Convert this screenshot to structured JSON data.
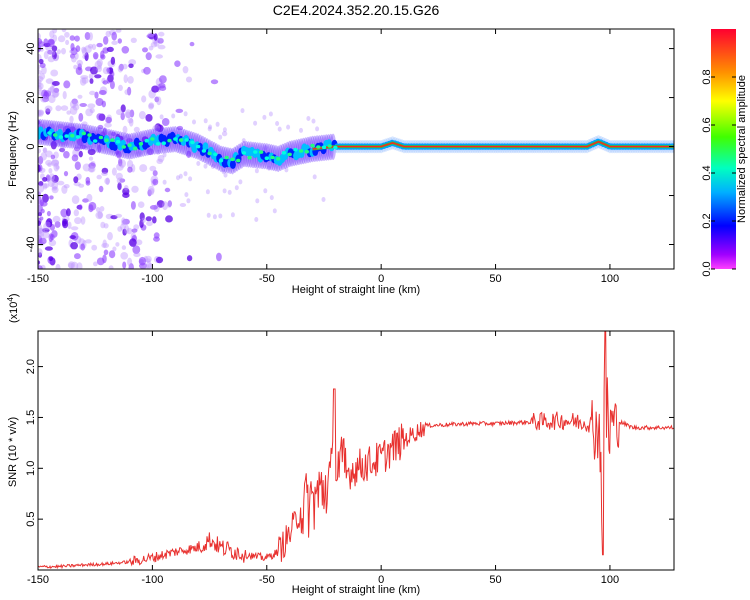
{
  "title": "C2E4.2024.352.20.15.G26",
  "chart_data": [
    {
      "type": "heatmap",
      "xlabel": "Height of straight line (km)",
      "ylabel": "Frequency (Hz)",
      "xlim": [
        -150,
        128
      ],
      "ylim": [
        -50,
        48
      ],
      "xticks": [
        -150,
        -100,
        -50,
        0,
        50,
        100
      ],
      "yticks": [
        -40,
        -20,
        0,
        20,
        40
      ],
      "colorbar": {
        "label": "Normalized spectral amplitude",
        "range": [
          0,
          1
        ],
        "ticks": [
          0.0,
          0.2,
          0.4,
          0.6,
          0.8
        ],
        "tick_labels": [
          "0.0",
          "0.2",
          "0.4",
          "0.6",
          "0.8"
        ],
        "colormap": [
          "#ff00ff",
          "#8000ff",
          "#0000ff",
          "#00ffff",
          "#00ff00",
          "#ffff00",
          "#ff8000",
          "#ff0000"
        ]
      },
      "ridge_center_hz": {
        "x": [
          -150,
          -140,
          -130,
          -120,
          -110,
          -100,
          -90,
          -80,
          -70,
          -65,
          -60,
          -50,
          -45,
          -40,
          -30,
          -20,
          -10,
          0,
          5,
          10,
          20,
          40,
          60,
          80,
          90,
          95,
          100,
          128
        ],
        "y": [
          6,
          5,
          4,
          2,
          0,
          2,
          3,
          0,
          -5,
          -6,
          -3,
          -4,
          -5,
          -3,
          -1,
          0,
          0,
          0,
          1.5,
          0,
          0,
          0,
          0,
          0,
          0,
          2,
          0,
          0
        ]
      }
    },
    {
      "type": "line",
      "xlabel": "Height of straight line (km)",
      "ylabel": "SNR (10 * v/v)",
      "y_multiplier_label": "(x10",
      "y_multiplier_exp": "4",
      "xlim": [
        -150,
        128
      ],
      "ylim": [
        0,
        23500
      ],
      "xticks": [
        -150,
        -100,
        -50,
        0,
        50,
        100
      ],
      "yticks": [
        5000,
        10000,
        15000,
        20000
      ],
      "ytick_labels": [
        "0.5",
        "1.0",
        "1.5",
        "2.0"
      ],
      "color": "#e8312f",
      "series": [
        {
          "x": [
            -150,
            -140,
            -130,
            -120,
            -110,
            -100,
            -90,
            -80,
            -75,
            -70,
            -60,
            -55,
            -50,
            -45,
            -40,
            -35,
            -30,
            -25,
            -22,
            -20,
            -15,
            -10,
            -5,
            0,
            5,
            10,
            15,
            20,
            30,
            40,
            50,
            60,
            70,
            80,
            90,
            95,
            97,
            98,
            100,
            105,
            110,
            120,
            128
          ],
          "y": [
            300,
            350,
            500,
            600,
            800,
            1200,
            1800,
            2200,
            3000,
            2200,
            1600,
            1300,
            1200,
            1800,
            3500,
            6000,
            6800,
            8000,
            9000,
            10500,
            9500,
            10200,
            10500,
            11000,
            12000,
            12800,
            13500,
            14200,
            14300,
            14400,
            14400,
            14500,
            14600,
            14700,
            14500,
            14000,
            9000,
            14500,
            14600,
            14500,
            14000,
            14000,
            14000
          ]
        }
      ]
    }
  ]
}
